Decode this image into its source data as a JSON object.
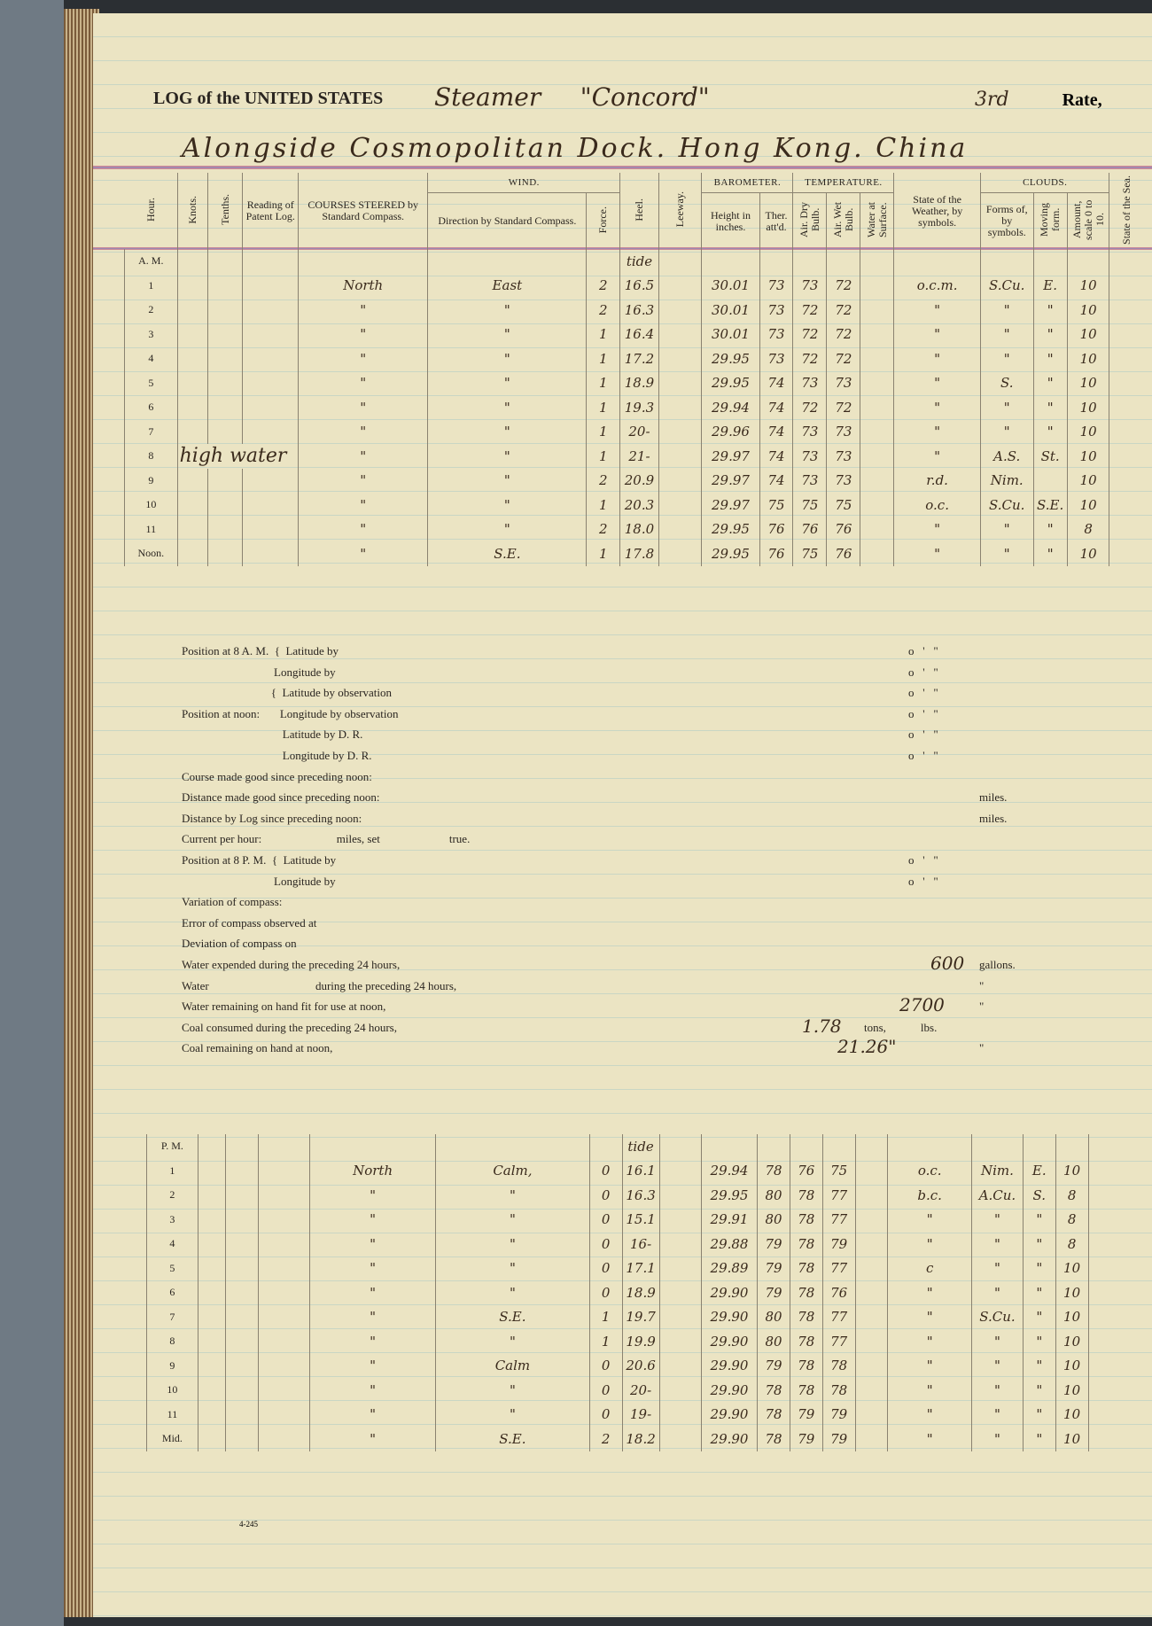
{
  "header": {
    "title": "LOG of the UNITED STATES",
    "vessel_type": "Steamer",
    "vessel_name": "\"Concord\"",
    "rate_hand": "3rd",
    "rate_label": "Rate,",
    "place": "Alongside Cosmopolitan Dock. Hong Kong. China"
  },
  "columns": {
    "hour": "Hour.",
    "knots": "Knots.",
    "tenths": "Tenths.",
    "patent": "Reading of Patent Log.",
    "courses": "COURSES STEERED by Standard Compass.",
    "wind": "WIND.",
    "direction": "Direction by Standard Compass.",
    "force": "Force.",
    "heel": "Heel.",
    "leeway": "Leeway.",
    "barometer": "BAROMETER.",
    "height": "Height in inches.",
    "ther": "Ther. att'd.",
    "temperature": "TEMPERATURE.",
    "dry": "Air. Dry Bulb.",
    "wet": "Air. Wet Bulb.",
    "water": "Water at Surface.",
    "weather": "State of the Weather, by symbols.",
    "clouds": "CLOUDS.",
    "forms": "Forms of, by symbols.",
    "moving": "Moving form.",
    "amount": "Amount, scale 0 to 10.",
    "sea": "State of the Sea."
  },
  "am": {
    "label": "A. M.",
    "heel_note": "tide",
    "side_note": "high water",
    "rows": [
      [
        "1",
        "North",
        "East",
        "2",
        "16.5",
        "30.01",
        "73",
        "73",
        "72",
        "o.c.m.",
        "S.Cu.",
        "E.",
        "10"
      ],
      [
        "2",
        "\"",
        "\"",
        "2",
        "16.3",
        "30.01",
        "73",
        "72",
        "72",
        "\"",
        "\"",
        "\"",
        "10"
      ],
      [
        "3",
        "\"",
        "\"",
        "1",
        "16.4",
        "30.01",
        "73",
        "72",
        "72",
        "\"",
        "\"",
        "\"",
        "10"
      ],
      [
        "4",
        "\"",
        "\"",
        "1",
        "17.2",
        "29.95",
        "73",
        "72",
        "72",
        "\"",
        "\"",
        "\"",
        "10"
      ],
      [
        "5",
        "\"",
        "\"",
        "1",
        "18.9",
        "29.95",
        "74",
        "73",
        "73",
        "\"",
        "S.",
        "\"",
        "10"
      ],
      [
        "6",
        "\"",
        "\"",
        "1",
        "19.3",
        "29.94",
        "74",
        "72",
        "72",
        "\"",
        "\"",
        "\"",
        "10"
      ],
      [
        "7",
        "\"",
        "\"",
        "1",
        "20-",
        "29.96",
        "74",
        "73",
        "73",
        "\"",
        "\"",
        "\"",
        "10"
      ],
      [
        "8",
        "\"",
        "\"",
        "1",
        "21-",
        "29.97",
        "74",
        "73",
        "73",
        "\"",
        "A.S.",
        "St.",
        "10"
      ],
      [
        "9",
        "\"",
        "\"",
        "2",
        "20.9",
        "29.97",
        "74",
        "73",
        "73",
        "r.d.",
        "Nim.",
        "",
        "10"
      ],
      [
        "10",
        "\"",
        "\"",
        "1",
        "20.3",
        "29.97",
        "75",
        "75",
        "75",
        "o.c.",
        "S.Cu.",
        "S.E.",
        "10"
      ],
      [
        "11",
        "\"",
        "\"",
        "2",
        "18.0",
        "29.95",
        "76",
        "76",
        "76",
        "\"",
        "\"",
        "\"",
        "8"
      ],
      [
        "Noon.",
        "\"",
        "S.E.",
        "1",
        "17.8",
        "29.95",
        "76",
        "75",
        "76",
        "\"",
        "\"",
        "\"",
        "10"
      ]
    ]
  },
  "pm": {
    "label": "P. M.",
    "heel_note": "tide",
    "rows": [
      [
        "1",
        "North",
        "Calm,",
        "0",
        "16.1",
        "29.94",
        "78",
        "76",
        "75",
        "o.c.",
        "Nim.",
        "E.",
        "10"
      ],
      [
        "2",
        "\"",
        "\"",
        "0",
        "16.3",
        "29.95",
        "80",
        "78",
        "77",
        "b.c.",
        "A.Cu.",
        "S.",
        "8"
      ],
      [
        "3",
        "\"",
        "\"",
        "0",
        "15.1",
        "29.91",
        "80",
        "78",
        "77",
        "\"",
        "\"",
        "\"",
        "8"
      ],
      [
        "4",
        "\"",
        "\"",
        "0",
        "16-",
        "29.88",
        "79",
        "78",
        "79",
        "\"",
        "\"",
        "\"",
        "8"
      ],
      [
        "5",
        "\"",
        "\"",
        "0",
        "17.1",
        "29.89",
        "79",
        "78",
        "77",
        "c",
        "\"",
        "\"",
        "10"
      ],
      [
        "6",
        "\"",
        "\"",
        "0",
        "18.9",
        "29.90",
        "79",
        "78",
        "76",
        "\"",
        "\"",
        "\"",
        "10"
      ],
      [
        "7",
        "\"",
        "S.E.",
        "1",
        "19.7",
        "29.90",
        "80",
        "78",
        "77",
        "\"",
        "S.Cu.",
        "\"",
        "10"
      ],
      [
        "8",
        "\"",
        "\"",
        "1",
        "19.9",
        "29.90",
        "80",
        "78",
        "77",
        "\"",
        "\"",
        "\"",
        "10"
      ],
      [
        "9",
        "\"",
        "Calm",
        "0",
        "20.6",
        "29.90",
        "79",
        "78",
        "78",
        "\"",
        "\"",
        "\"",
        "10"
      ],
      [
        "10",
        "\"",
        "\"",
        "0",
        "20-",
        "29.90",
        "78",
        "78",
        "78",
        "\"",
        "\"",
        "\"",
        "10"
      ],
      [
        "11",
        "\"",
        "\"",
        "0",
        "19-",
        "29.90",
        "78",
        "79",
        "79",
        "\"",
        "\"",
        "\"",
        "10"
      ],
      [
        "Mid.",
        "\"",
        "S.E.",
        "2",
        "18.2",
        "29.90",
        "78",
        "79",
        "79",
        "\"",
        "\"",
        "\"",
        "10"
      ]
    ]
  },
  "middle": [
    {
      "text": "Position at 8 A. M.  {  Latitude by",
      "marks": "o   '   \""
    },
    {
      "text": "                                Longitude by",
      "marks": "o   '   \""
    },
    {
      "text": "                               {  Latitude by observation",
      "marks": "o   '   \""
    },
    {
      "text": "Position at noon:       Longitude by observation",
      "marks": "o   '   \""
    },
    {
      "text": "                                   Latitude by D. R.",
      "marks": "o   '   \""
    },
    {
      "text": "                                   Longitude by D. R.",
      "marks": "o   '   \""
    },
    {
      "text": "Course made good since preceding noon:",
      "marks": ""
    },
    {
      "text": "Distance made good since preceding noon:",
      "marks": "miles."
    },
    {
      "text": "Distance by Log since preceding noon:",
      "marks": "miles."
    },
    {
      "text": "Current per hour:                          miles, set                        true.",
      "marks": ""
    },
    {
      "text": "Position at 8 P. M.  {  Latitude by",
      "marks": "o   '   \""
    },
    {
      "text": "                                Longitude by",
      "marks": "o   '   \""
    },
    {
      "text": "Variation of compass:",
      "marks": ""
    },
    {
      "text": "Error of compass observed at",
      "marks": ""
    },
    {
      "text": "Deviation of compass on",
      "marks": ""
    },
    {
      "text": "Water expended during the preceding 24 hours,",
      "marks": "gallons."
    },
    {
      "text": "Water                                     during the preceding 24 hours,",
      "marks": "\""
    },
    {
      "text": "Water remaining on hand fit for use at noon,",
      "marks": "\""
    },
    {
      "text": "Coal consumed during the preceding 24 hours,",
      "marks": "tons,            lbs."
    },
    {
      "text": "Coal remaining on hand at noon,",
      "marks": "\""
    }
  ],
  "values": {
    "water_expended": "600",
    "water_remaining": "2700",
    "coal_consumed": "1.78",
    "coal_remaining": "21.26\""
  },
  "footer": "4-245"
}
